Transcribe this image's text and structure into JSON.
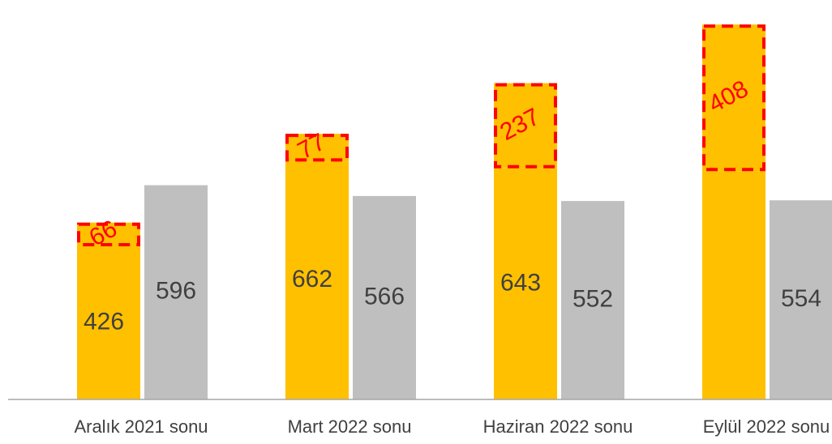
{
  "chart_data": {
    "type": "bar",
    "categories": [
      "Aralık 2021 sonu",
      "Mart 2022 sonu",
      "Haziran 2022 sonu",
      "Eylül 2022 sonu"
    ],
    "series": [
      {
        "color": "#ffc000",
        "values": [
          426,
          662,
          643,
          635
        ],
        "value_labels": [
          "426",
          "662",
          "643",
          null
        ]
      },
      {
        "color": "#ffc000",
        "values": [
          66,
          77,
          237,
          408
        ],
        "stacked": true,
        "outline": "#ff0000",
        "label_color": "#ff0000"
      },
      {
        "color": "#bfbfbf",
        "values": [
          596,
          566,
          552,
          554
        ]
      }
    ],
    "ylim": [
      0,
      1100
    ]
  }
}
